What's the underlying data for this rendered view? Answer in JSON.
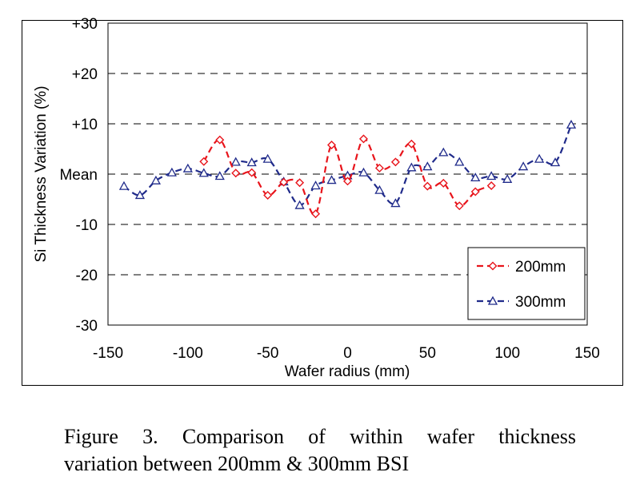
{
  "chart_data": {
    "type": "line",
    "title": "",
    "xlabel": "Wafer radius (mm)",
    "ylabel": "Si Thickness Variation (%)",
    "xlim": [
      -150,
      150
    ],
    "ylim": [
      -30,
      30
    ],
    "x_ticks": [
      -150,
      -100,
      -50,
      0,
      50,
      100,
      150
    ],
    "x_tick_labels": [
      "-150",
      "-100",
      "-50",
      "0",
      "50",
      "100",
      "150"
    ],
    "y_ticks": [
      30,
      20,
      10,
      0,
      -10,
      -20,
      -30
    ],
    "y_tick_labels": [
      "+30",
      "+20",
      "+10",
      "Mean",
      "-10",
      "-20",
      "-30"
    ],
    "grid": "horizontal dashed",
    "legend_position": "bottom-right",
    "series": [
      {
        "name": "200mm",
        "color": "#e8141b",
        "marker": "diamond",
        "x": [
          -90,
          -80,
          -70,
          -60,
          -50,
          -40,
          -30,
          -20,
          -10,
          0,
          10,
          20,
          30,
          40,
          50,
          60,
          70,
          80,
          90
        ],
        "y": [
          2.5,
          6.8,
          0.2,
          0.3,
          -4.2,
          -1.6,
          -1.7,
          -7.9,
          5.8,
          -1.4,
          7.0,
          1.2,
          2.4,
          6.0,
          -2.4,
          -1.8,
          -6.3,
          -3.5,
          -2.3
        ]
      },
      {
        "name": "300mm",
        "color": "#1f2a8a",
        "marker": "triangle",
        "x": [
          -140,
          -130,
          -120,
          -110,
          -100,
          -90,
          -80,
          -70,
          -60,
          -50,
          -40,
          -30,
          -20,
          -10,
          0,
          10,
          20,
          30,
          40,
          50,
          60,
          70,
          80,
          90,
          100,
          110,
          120,
          130,
          140
        ],
        "y": [
          -2.4,
          -4.2,
          -1.3,
          0.3,
          1.1,
          0.2,
          -0.4,
          2.4,
          2.3,
          3.0,
          -1.5,
          -6.2,
          -2.3,
          -1.2,
          -0.3,
          0.3,
          -3.2,
          -5.8,
          1.3,
          1.5,
          4.3,
          2.4,
          -0.7,
          -0.4,
          -1.0,
          1.5,
          3.0,
          2.3,
          9.8
        ]
      }
    ]
  },
  "caption": {
    "line1": "Figure 3. Comparison of within wafer thickness",
    "line2": "variation between 200mm & 300mm BSI"
  }
}
